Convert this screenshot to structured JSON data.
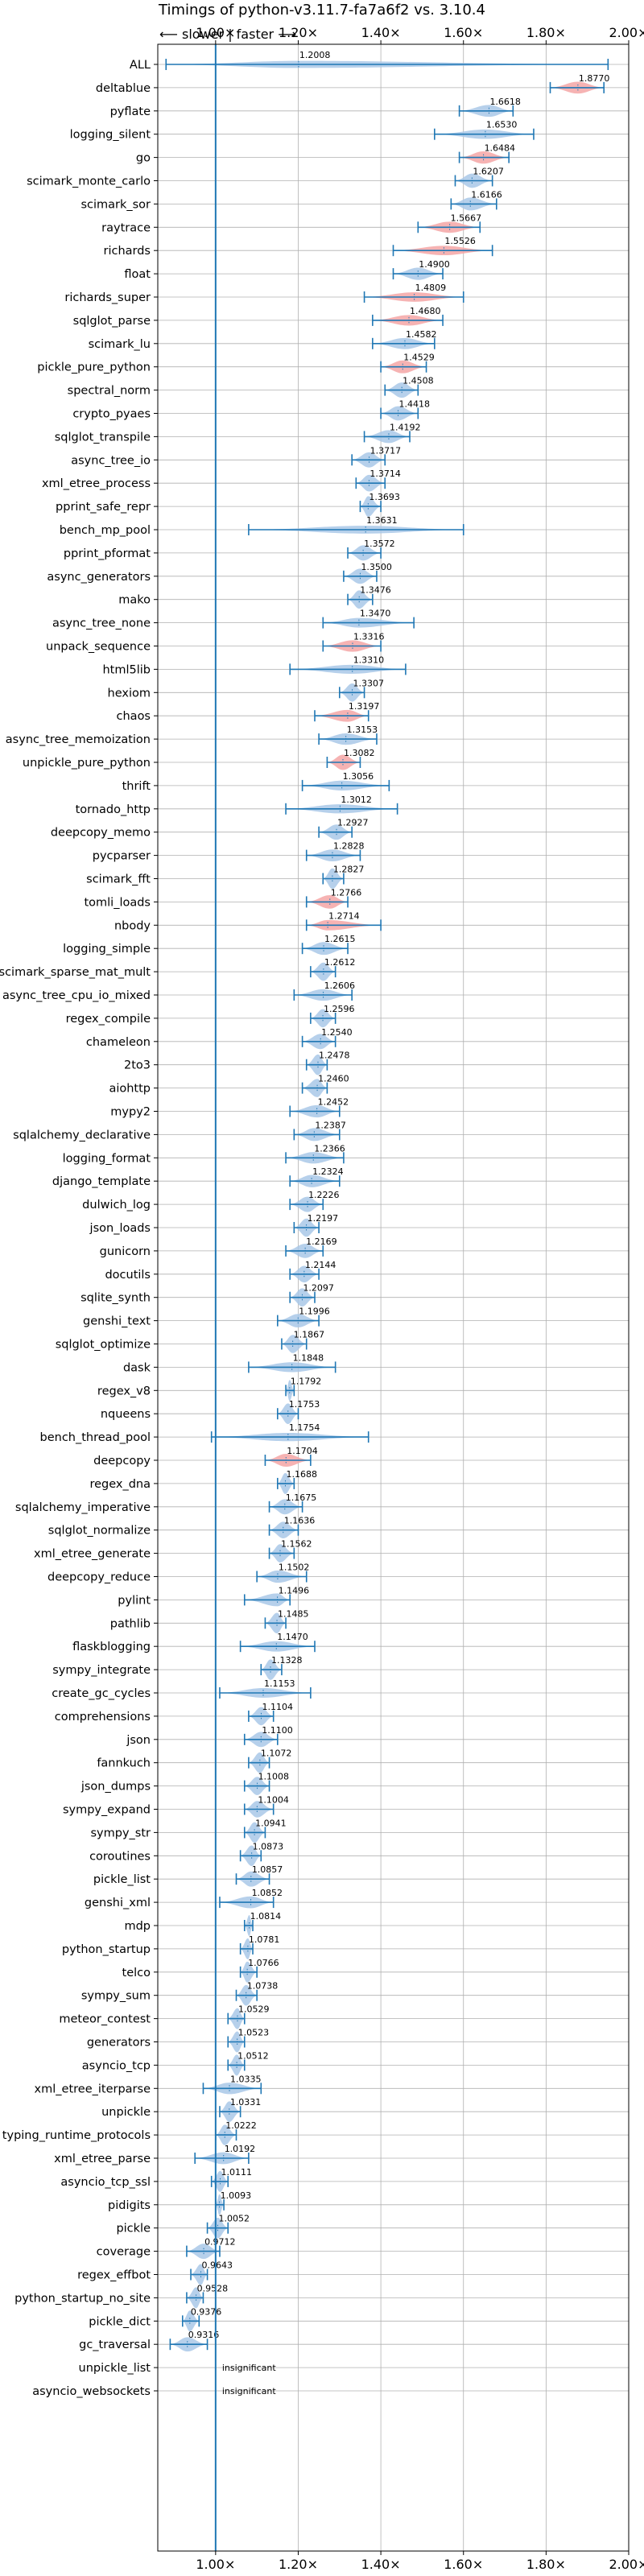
{
  "chart_data": {
    "type": "violin",
    "title": "Timings of python-v3.11.7-fa7a6f2 vs. 3.10.4",
    "direction_label": "⟵ slower | faster ⟶",
    "xlim": [
      0.86,
      2.0
    ],
    "xticks": [
      1.0,
      1.2,
      1.4,
      1.6,
      1.8,
      2.0
    ],
    "xtick_labels": [
      "1.00×",
      "1.20×",
      "1.40×",
      "1.60×",
      "1.80×",
      "2.00×"
    ],
    "reference_line": 1.0,
    "colors": {
      "faster": "#a9c8e8",
      "slower": "#f4a6a6",
      "line": "#1f77b4"
    },
    "insignificant_label": "insignificant",
    "categories": [
      {
        "name": "ALL",
        "value": 1.2008,
        "min": 0.88,
        "max": 1.95,
        "status": "faster"
      },
      {
        "name": "deltablue",
        "value": 1.877,
        "min": 1.81,
        "max": 1.94,
        "status": "slower"
      },
      {
        "name": "pyflate",
        "value": 1.6618,
        "min": 1.59,
        "max": 1.72,
        "status": "faster"
      },
      {
        "name": "logging_silent",
        "value": 1.653,
        "min": 1.53,
        "max": 1.77,
        "status": "faster"
      },
      {
        "name": "go",
        "value": 1.6484,
        "min": 1.59,
        "max": 1.71,
        "status": "slower"
      },
      {
        "name": "scimark_monte_carlo",
        "value": 1.6207,
        "min": 1.58,
        "max": 1.67,
        "status": "faster"
      },
      {
        "name": "scimark_sor",
        "value": 1.6166,
        "min": 1.57,
        "max": 1.68,
        "status": "faster"
      },
      {
        "name": "raytrace",
        "value": 1.5667,
        "min": 1.49,
        "max": 1.64,
        "status": "slower"
      },
      {
        "name": "richards",
        "value": 1.5526,
        "min": 1.43,
        "max": 1.67,
        "status": "slower"
      },
      {
        "name": "float",
        "value": 1.49,
        "min": 1.43,
        "max": 1.55,
        "status": "faster"
      },
      {
        "name": "richards_super",
        "value": 1.4809,
        "min": 1.36,
        "max": 1.6,
        "status": "slower"
      },
      {
        "name": "sqlglot_parse",
        "value": 1.468,
        "min": 1.38,
        "max": 1.55,
        "status": "slower"
      },
      {
        "name": "scimark_lu",
        "value": 1.4582,
        "min": 1.38,
        "max": 1.53,
        "status": "faster"
      },
      {
        "name": "pickle_pure_python",
        "value": 1.4529,
        "min": 1.4,
        "max": 1.51,
        "status": "slower"
      },
      {
        "name": "spectral_norm",
        "value": 1.4508,
        "min": 1.41,
        "max": 1.49,
        "status": "faster"
      },
      {
        "name": "crypto_pyaes",
        "value": 1.4418,
        "min": 1.4,
        "max": 1.49,
        "status": "faster"
      },
      {
        "name": "sqlglot_transpile",
        "value": 1.4192,
        "min": 1.36,
        "max": 1.47,
        "status": "faster"
      },
      {
        "name": "async_tree_io",
        "value": 1.3717,
        "min": 1.33,
        "max": 1.41,
        "status": "faster"
      },
      {
        "name": "xml_etree_process",
        "value": 1.3714,
        "min": 1.34,
        "max": 1.41,
        "status": "faster"
      },
      {
        "name": "pprint_safe_repr",
        "value": 1.3693,
        "min": 1.35,
        "max": 1.4,
        "status": "faster"
      },
      {
        "name": "bench_mp_pool",
        "value": 1.3631,
        "min": 1.08,
        "max": 1.6,
        "status": "faster"
      },
      {
        "name": "pprint_pformat",
        "value": 1.3572,
        "min": 1.32,
        "max": 1.4,
        "status": "faster"
      },
      {
        "name": "async_generators",
        "value": 1.35,
        "min": 1.31,
        "max": 1.39,
        "status": "faster"
      },
      {
        "name": "mako",
        "value": 1.3476,
        "min": 1.32,
        "max": 1.38,
        "status": "faster"
      },
      {
        "name": "async_tree_none",
        "value": 1.347,
        "min": 1.26,
        "max": 1.48,
        "status": "faster"
      },
      {
        "name": "unpack_sequence",
        "value": 1.3316,
        "min": 1.26,
        "max": 1.4,
        "status": "slower"
      },
      {
        "name": "html5lib",
        "value": 1.331,
        "min": 1.18,
        "max": 1.46,
        "status": "faster"
      },
      {
        "name": "hexiom",
        "value": 1.3307,
        "min": 1.3,
        "max": 1.36,
        "status": "faster"
      },
      {
        "name": "chaos",
        "value": 1.3197,
        "min": 1.24,
        "max": 1.37,
        "status": "slower"
      },
      {
        "name": "async_tree_memoization",
        "value": 1.3153,
        "min": 1.25,
        "max": 1.39,
        "status": "faster"
      },
      {
        "name": "unpickle_pure_python",
        "value": 1.3082,
        "min": 1.27,
        "max": 1.35,
        "status": "slower"
      },
      {
        "name": "thrift",
        "value": 1.3056,
        "min": 1.21,
        "max": 1.42,
        "status": "faster"
      },
      {
        "name": "tornado_http",
        "value": 1.3012,
        "min": 1.17,
        "max": 1.44,
        "status": "faster"
      },
      {
        "name": "deepcopy_memo",
        "value": 1.2927,
        "min": 1.25,
        "max": 1.33,
        "status": "faster"
      },
      {
        "name": "pycparser",
        "value": 1.2828,
        "min": 1.22,
        "max": 1.35,
        "status": "faster"
      },
      {
        "name": "scimark_fft",
        "value": 1.2827,
        "min": 1.26,
        "max": 1.31,
        "status": "faster"
      },
      {
        "name": "tomli_loads",
        "value": 1.2766,
        "min": 1.22,
        "max": 1.32,
        "status": "slower"
      },
      {
        "name": "nbody",
        "value": 1.2714,
        "min": 1.22,
        "max": 1.4,
        "status": "slower"
      },
      {
        "name": "logging_simple",
        "value": 1.2615,
        "min": 1.21,
        "max": 1.32,
        "status": "faster"
      },
      {
        "name": "scimark_sparse_mat_mult",
        "value": 1.2612,
        "min": 1.23,
        "max": 1.29,
        "status": "faster"
      },
      {
        "name": "async_tree_cpu_io_mixed",
        "value": 1.2606,
        "min": 1.19,
        "max": 1.33,
        "status": "faster"
      },
      {
        "name": "regex_compile",
        "value": 1.2596,
        "min": 1.23,
        "max": 1.29,
        "status": "faster"
      },
      {
        "name": "chameleon",
        "value": 1.254,
        "min": 1.21,
        "max": 1.29,
        "status": "faster"
      },
      {
        "name": "2to3",
        "value": 1.2478,
        "min": 1.22,
        "max": 1.27,
        "status": "faster"
      },
      {
        "name": "aiohttp",
        "value": 1.246,
        "min": 1.21,
        "max": 1.27,
        "status": "faster"
      },
      {
        "name": "mypy2",
        "value": 1.2452,
        "min": 1.18,
        "max": 1.3,
        "status": "faster"
      },
      {
        "name": "sqlalchemy_declarative",
        "value": 1.2387,
        "min": 1.19,
        "max": 1.3,
        "status": "faster"
      },
      {
        "name": "logging_format",
        "value": 1.2366,
        "min": 1.17,
        "max": 1.31,
        "status": "faster"
      },
      {
        "name": "django_template",
        "value": 1.2324,
        "min": 1.18,
        "max": 1.3,
        "status": "faster"
      },
      {
        "name": "dulwich_log",
        "value": 1.2226,
        "min": 1.18,
        "max": 1.26,
        "status": "faster"
      },
      {
        "name": "json_loads",
        "value": 1.2197,
        "min": 1.19,
        "max": 1.25,
        "status": "faster"
      },
      {
        "name": "gunicorn",
        "value": 1.2169,
        "min": 1.17,
        "max": 1.26,
        "status": "faster"
      },
      {
        "name": "docutils",
        "value": 1.2144,
        "min": 1.18,
        "max": 1.25,
        "status": "faster"
      },
      {
        "name": "sqlite_synth",
        "value": 1.2097,
        "min": 1.18,
        "max": 1.24,
        "status": "faster"
      },
      {
        "name": "genshi_text",
        "value": 1.1996,
        "min": 1.15,
        "max": 1.25,
        "status": "faster"
      },
      {
        "name": "sqlglot_optimize",
        "value": 1.1867,
        "min": 1.16,
        "max": 1.22,
        "status": "faster"
      },
      {
        "name": "dask",
        "value": 1.1848,
        "min": 1.08,
        "max": 1.29,
        "status": "faster"
      },
      {
        "name": "regex_v8",
        "value": 1.1792,
        "min": 1.17,
        "max": 1.19,
        "status": "faster"
      },
      {
        "name": "nqueens",
        "value": 1.1753,
        "min": 1.15,
        "max": 1.2,
        "status": "faster"
      },
      {
        "name": "bench_thread_pool",
        "value": 1.1754,
        "min": 0.99,
        "max": 1.37,
        "status": "faster"
      },
      {
        "name": "deepcopy",
        "value": 1.1704,
        "min": 1.12,
        "max": 1.23,
        "status": "slower"
      },
      {
        "name": "regex_dna",
        "value": 1.1688,
        "min": 1.15,
        "max": 1.19,
        "status": "faster"
      },
      {
        "name": "sqlalchemy_imperative",
        "value": 1.1675,
        "min": 1.13,
        "max": 1.21,
        "status": "faster"
      },
      {
        "name": "sqlglot_normalize",
        "value": 1.1636,
        "min": 1.13,
        "max": 1.2,
        "status": "faster"
      },
      {
        "name": "xml_etree_generate",
        "value": 1.1562,
        "min": 1.13,
        "max": 1.19,
        "status": "faster"
      },
      {
        "name": "deepcopy_reduce",
        "value": 1.1502,
        "min": 1.1,
        "max": 1.22,
        "status": "faster"
      },
      {
        "name": "pylint",
        "value": 1.1496,
        "min": 1.07,
        "max": 1.18,
        "status": "faster"
      },
      {
        "name": "pathlib",
        "value": 1.1485,
        "min": 1.12,
        "max": 1.17,
        "status": "faster"
      },
      {
        "name": "flaskblogging",
        "value": 1.147,
        "min": 1.06,
        "max": 1.24,
        "status": "faster"
      },
      {
        "name": "sympy_integrate",
        "value": 1.1328,
        "min": 1.11,
        "max": 1.16,
        "status": "faster"
      },
      {
        "name": "create_gc_cycles",
        "value": 1.1153,
        "min": 1.01,
        "max": 1.23,
        "status": "faster"
      },
      {
        "name": "comprehensions",
        "value": 1.1104,
        "min": 1.08,
        "max": 1.14,
        "status": "faster"
      },
      {
        "name": "json",
        "value": 1.11,
        "min": 1.07,
        "max": 1.15,
        "status": "faster"
      },
      {
        "name": "fannkuch",
        "value": 1.1072,
        "min": 1.08,
        "max": 1.13,
        "status": "faster"
      },
      {
        "name": "json_dumps",
        "value": 1.1008,
        "min": 1.07,
        "max": 1.13,
        "status": "faster"
      },
      {
        "name": "sympy_expand",
        "value": 1.1004,
        "min": 1.07,
        "max": 1.14,
        "status": "faster"
      },
      {
        "name": "sympy_str",
        "value": 1.0941,
        "min": 1.07,
        "max": 1.12,
        "status": "faster"
      },
      {
        "name": "coroutines",
        "value": 1.0873,
        "min": 1.06,
        "max": 1.11,
        "status": "faster"
      },
      {
        "name": "pickle_list",
        "value": 1.0857,
        "min": 1.05,
        "max": 1.13,
        "status": "faster"
      },
      {
        "name": "genshi_xml",
        "value": 1.0852,
        "min": 1.01,
        "max": 1.14,
        "status": "faster"
      },
      {
        "name": "mdp",
        "value": 1.0814,
        "min": 1.07,
        "max": 1.09,
        "status": "faster"
      },
      {
        "name": "python_startup",
        "value": 1.0781,
        "min": 1.06,
        "max": 1.09,
        "status": "faster"
      },
      {
        "name": "telco",
        "value": 1.0766,
        "min": 1.06,
        "max": 1.1,
        "status": "faster"
      },
      {
        "name": "sympy_sum",
        "value": 1.0738,
        "min": 1.05,
        "max": 1.1,
        "status": "faster"
      },
      {
        "name": "meteor_contest",
        "value": 1.0529,
        "min": 1.03,
        "max": 1.07,
        "status": "faster"
      },
      {
        "name": "generators",
        "value": 1.0523,
        "min": 1.03,
        "max": 1.07,
        "status": "faster"
      },
      {
        "name": "asyncio_tcp",
        "value": 1.0512,
        "min": 1.03,
        "max": 1.07,
        "status": "faster"
      },
      {
        "name": "xml_etree_iterparse",
        "value": 1.0335,
        "min": 0.97,
        "max": 1.11,
        "status": "faster"
      },
      {
        "name": "unpickle",
        "value": 1.0331,
        "min": 1.01,
        "max": 1.06,
        "status": "faster"
      },
      {
        "name": "typing_runtime_protocols",
        "value": 1.0222,
        "min": 1.0,
        "max": 1.05,
        "status": "faster"
      },
      {
        "name": "xml_etree_parse",
        "value": 1.0192,
        "min": 0.95,
        "max": 1.08,
        "status": "faster"
      },
      {
        "name": "asyncio_tcp_ssl",
        "value": 1.0111,
        "min": 0.99,
        "max": 1.03,
        "status": "faster"
      },
      {
        "name": "pidigits",
        "value": 1.0093,
        "min": 1.0,
        "max": 1.02,
        "status": "faster"
      },
      {
        "name": "pickle",
        "value": 1.0052,
        "min": 0.98,
        "max": 1.03,
        "status": "faster"
      },
      {
        "name": "coverage",
        "value": 0.9712,
        "min": 0.93,
        "max": 1.01,
        "status": "faster"
      },
      {
        "name": "regex_effbot",
        "value": 0.9643,
        "min": 0.94,
        "max": 0.98,
        "status": "faster"
      },
      {
        "name": "python_startup_no_site",
        "value": 0.9528,
        "min": 0.93,
        "max": 0.97,
        "status": "faster"
      },
      {
        "name": "pickle_dict",
        "value": 0.9376,
        "min": 0.92,
        "max": 0.96,
        "status": "faster"
      },
      {
        "name": "gc_traversal",
        "value": 0.9316,
        "min": 0.89,
        "max": 0.98,
        "status": "faster"
      },
      {
        "name": "unpickle_list",
        "value": null,
        "status": "insignificant"
      },
      {
        "name": "asyncio_websockets",
        "value": null,
        "status": "insignificant"
      }
    ]
  }
}
